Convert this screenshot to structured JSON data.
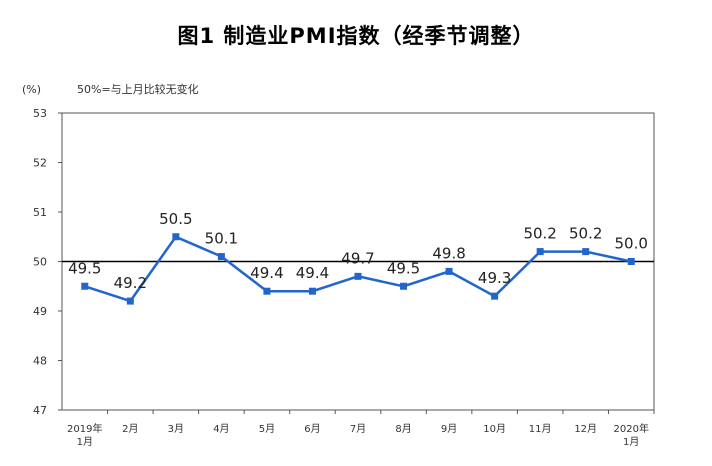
{
  "chart_data": {
    "type": "line",
    "title": "图1  制造业PMI指数（经季节调整）",
    "unit_label": "(%)",
    "reference_note": "50%=与上月比较无变化",
    "reference_value": 50,
    "categories": [
      [
        "2019年",
        "1月"
      ],
      [
        "2月"
      ],
      [
        "3月"
      ],
      [
        "4月"
      ],
      [
        "5月"
      ],
      [
        "6月"
      ],
      [
        "7月"
      ],
      [
        "8月"
      ],
      [
        "9月"
      ],
      [
        "10月"
      ],
      [
        "11月"
      ],
      [
        "12月"
      ],
      [
        "2020年",
        "1月"
      ]
    ],
    "values": [
      49.5,
      49.2,
      50.5,
      50.1,
      49.4,
      49.4,
      49.7,
      49.5,
      49.8,
      49.3,
      50.2,
      50.2,
      50.0
    ],
    "data_labels": [
      "49.5",
      "49.2",
      "50.5",
      "50.1",
      "49.4",
      "49.4",
      "49.7",
      "49.5",
      "49.8",
      "49.3",
      "50.2",
      "50.2",
      "50.0"
    ],
    "yticks": [
      "47",
      "48",
      "49",
      "50",
      "51",
      "52",
      "53"
    ],
    "ylim": [
      47,
      53
    ],
    "grid": false,
    "legend": "none",
    "colors": {
      "line": "#2266cc",
      "marker": "#2266cc",
      "reference": "#000000",
      "frame": "#555555"
    }
  }
}
